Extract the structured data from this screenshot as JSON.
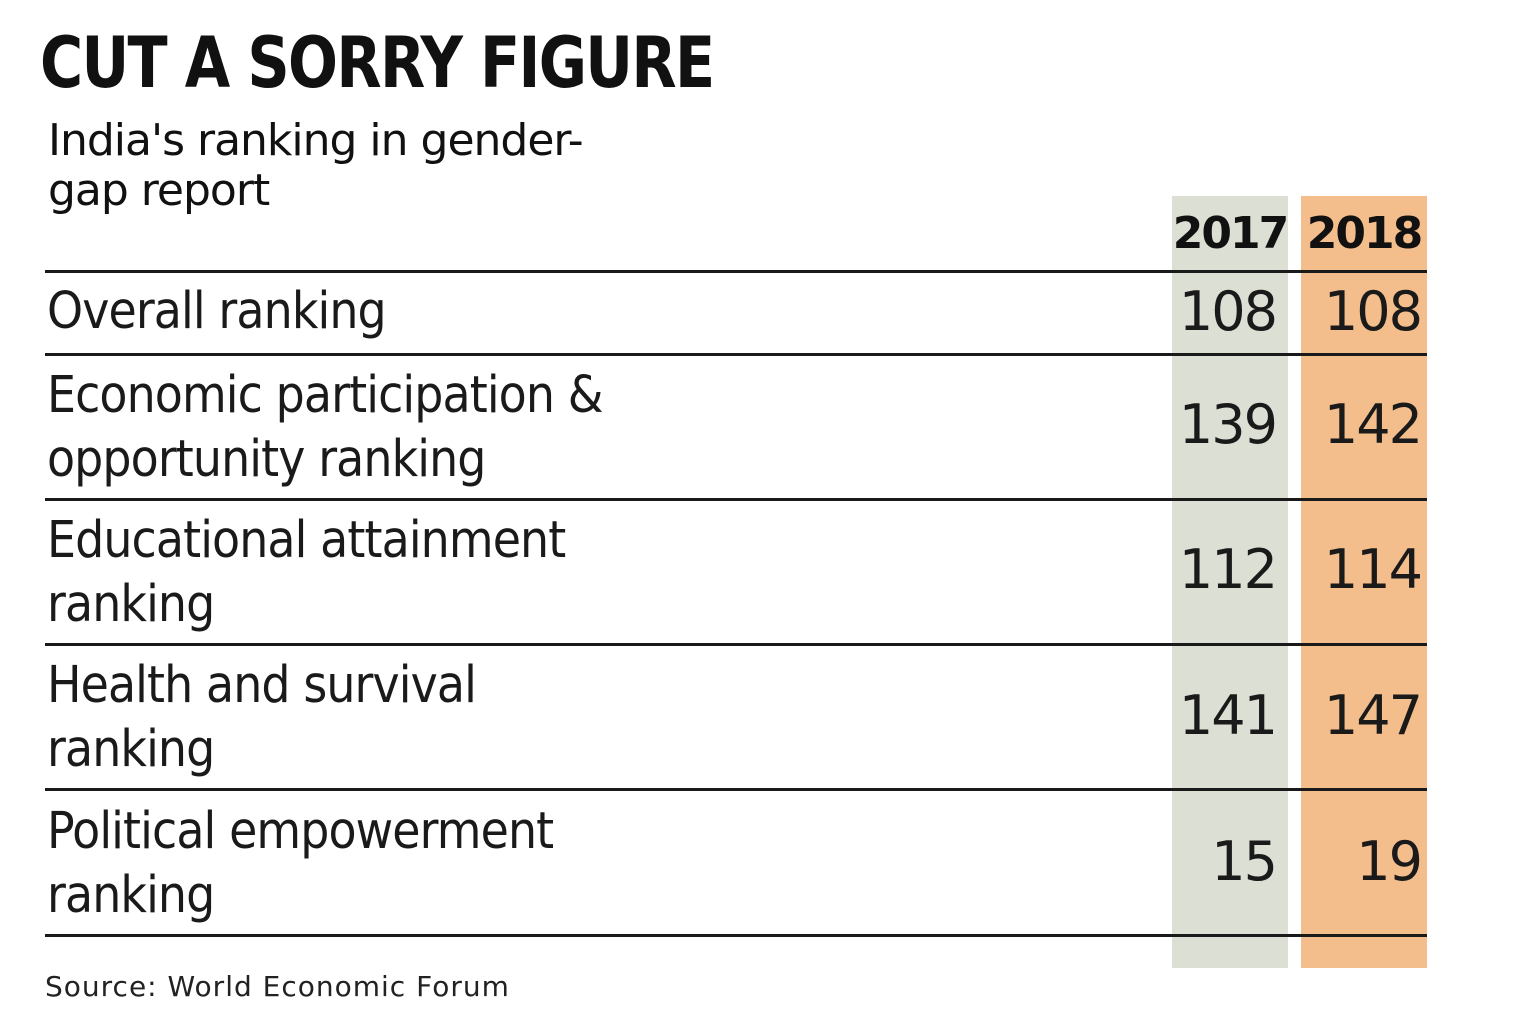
{
  "chart_data": {
    "type": "table",
    "title": "CUT A SORRY FIGURE",
    "subtitle": "India's ranking in gender-gap report",
    "columns": [
      "2017",
      "2018"
    ],
    "rows": [
      {
        "label": "Overall ranking",
        "values": [
          108,
          108
        ]
      },
      {
        "label": "Economic participation & opportunity ranking",
        "values": [
          139,
          142
        ]
      },
      {
        "label": "Educational attainment ranking",
        "values": [
          112,
          114
        ]
      },
      {
        "label": "Health and survival ranking",
        "values": [
          141,
          147
        ]
      },
      {
        "label": "Political empowerment ranking",
        "values": [
          15,
          19
        ]
      }
    ],
    "source": "Source: World Economic Forum",
    "colors": {
      "col_2017": "#dcdfd4",
      "col_2018": "#f4bd8c",
      "rules": "#1a1a1a"
    }
  }
}
